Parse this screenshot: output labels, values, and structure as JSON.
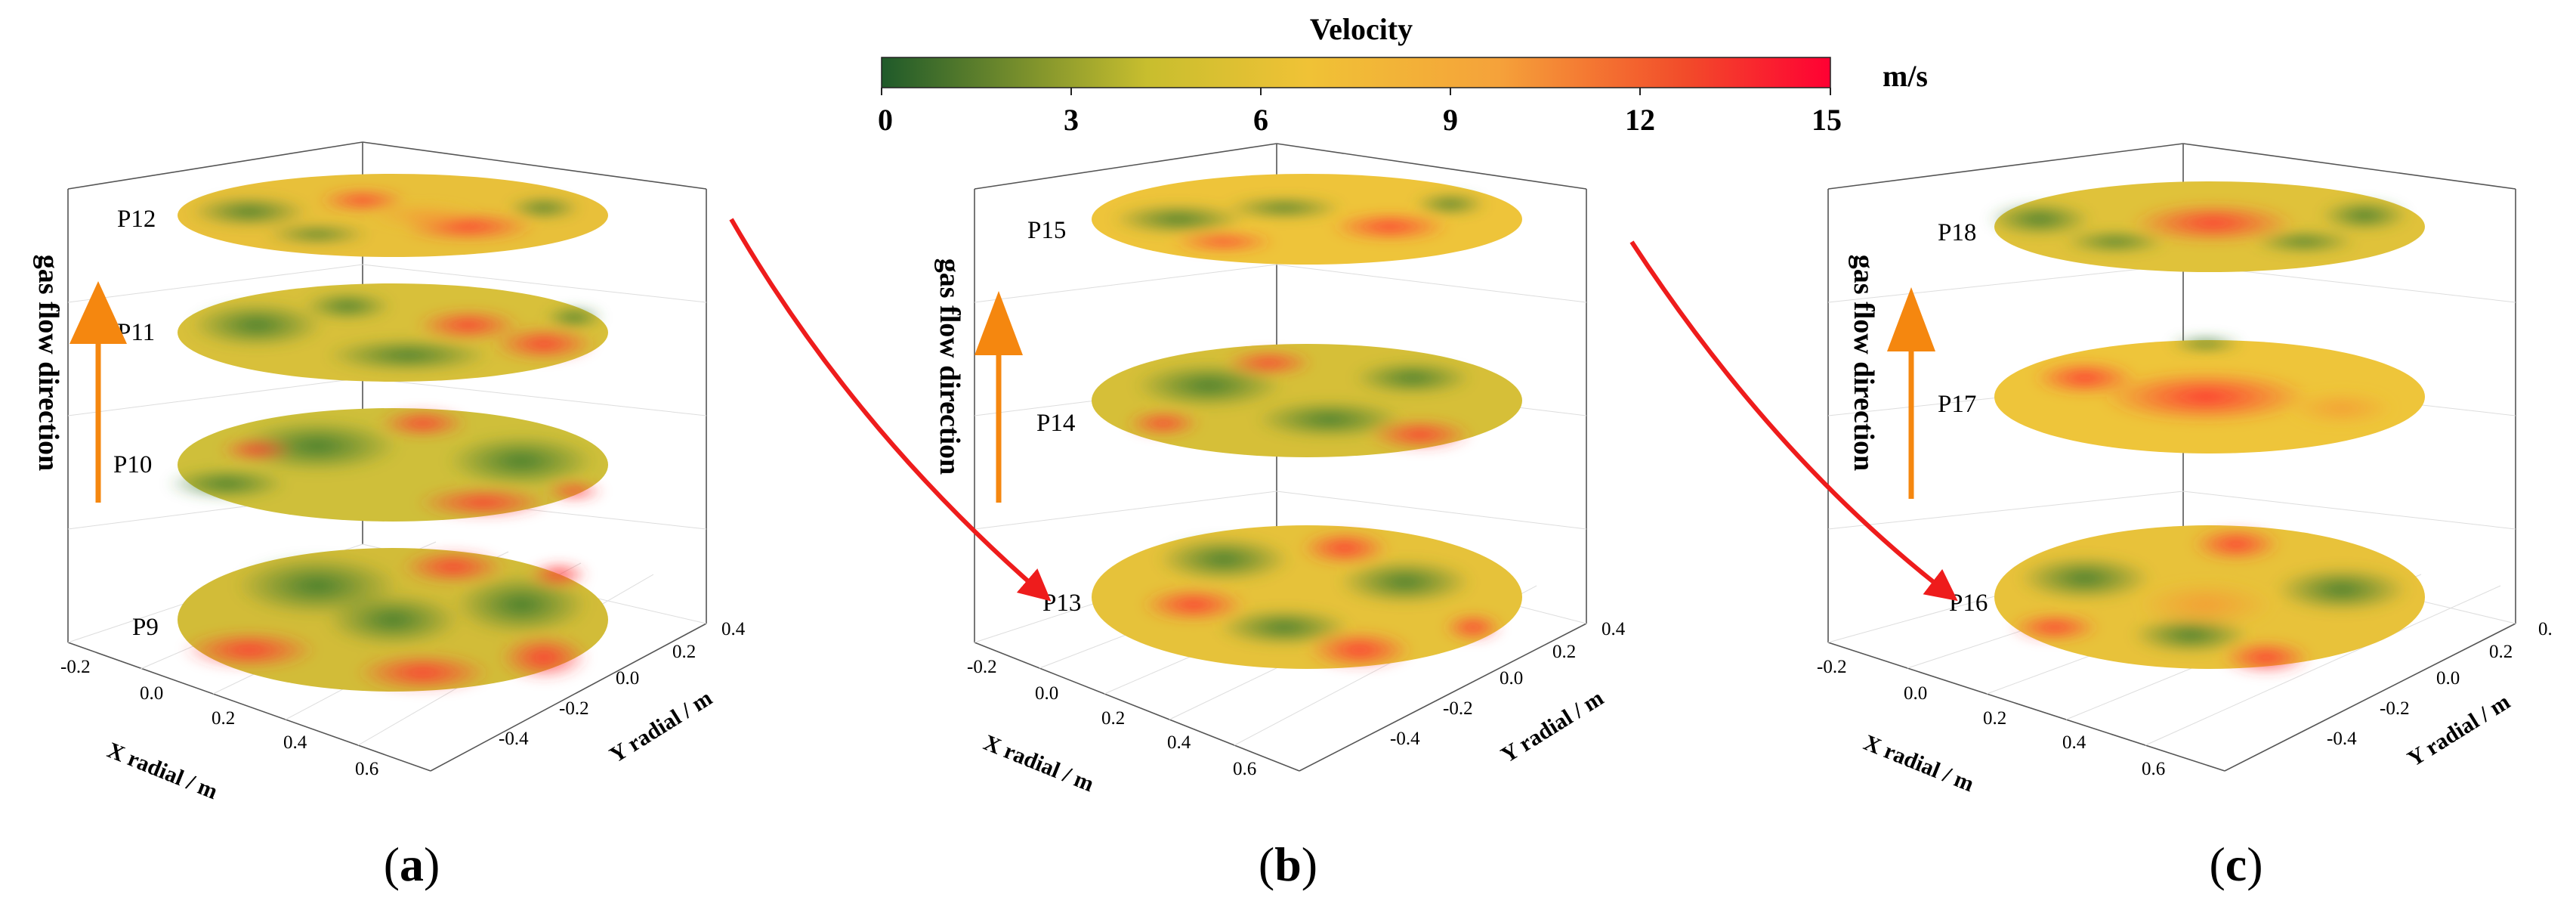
{
  "colorbar": {
    "title": "Velocity",
    "unit": "m/s",
    "ticks": [
      "0",
      "3",
      "6",
      "9",
      "12",
      "15"
    ],
    "range": [
      0,
      15
    ],
    "colors": [
      "#1f5a2a",
      "#d9c22e",
      "#f0c236",
      "#f5a23a",
      "#f0302a",
      "#ff0030"
    ]
  },
  "panels": [
    {
      "id": "a",
      "label_open": "(",
      "label_letter": "a",
      "label_close": ")",
      "planes": [
        "P12",
        "P11",
        "P10",
        "P9"
      ],
      "x_axis_label": "X radial / m",
      "y_axis_label": "Y radial / m",
      "x_ticks": [
        "-0.2",
        "0.0",
        "0.2",
        "0.4",
        "0.6"
      ],
      "y_ticks": [
        "0.4",
        "0.2",
        "0.0",
        "-0.2",
        "-0.4"
      ],
      "side_label": "gas flow direction"
    },
    {
      "id": "b",
      "label_open": "(",
      "label_letter": "b",
      "label_close": ")",
      "planes": [
        "P15",
        "P14",
        "P13"
      ],
      "x_axis_label": "X radial / m",
      "y_axis_label": "Y radial / m",
      "x_ticks": [
        "-0.2",
        "0.0",
        "0.2",
        "0.4",
        "0.6"
      ],
      "y_ticks": [
        "0.4",
        "0.2",
        "0.0",
        "-0.2",
        "-0.4"
      ],
      "side_label": "gas flow direction"
    },
    {
      "id": "c",
      "label_open": "(",
      "label_letter": "c",
      "label_close": ")",
      "planes": [
        "P18",
        "P17",
        "P16"
      ],
      "x_axis_label": "X radial / m",
      "y_axis_label": "Y radial / m",
      "x_ticks": [
        "-0.2",
        "0.0",
        "0.2",
        "0.4",
        "0.6"
      ],
      "y_ticks": [
        "0.2",
        "0.0",
        "-0.2",
        "-0.4"
      ],
      "y_tick_cut": "0.",
      "side_label": "gas flow direction"
    }
  ],
  "arrow_colors": {
    "flow": "#f5870f",
    "transition": "#ee1c1c"
  }
}
